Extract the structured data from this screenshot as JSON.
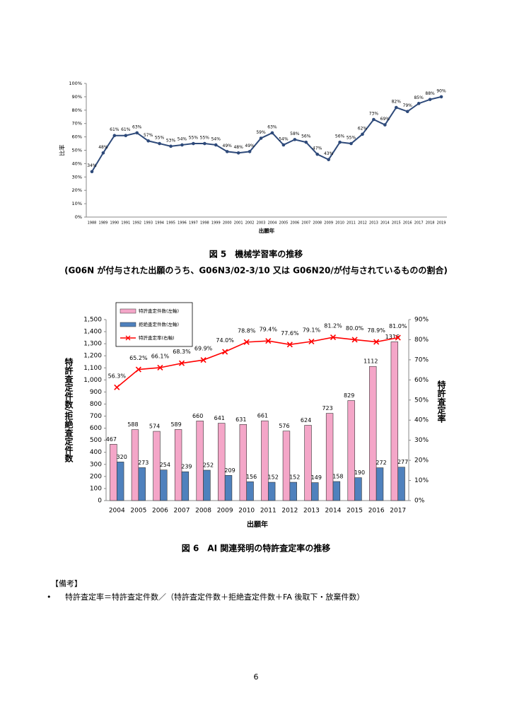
{
  "chart_data": [
    {
      "type": "line",
      "x_label": "出願年",
      "y_label": "比率",
      "categories": [
        "1988",
        "1989",
        "1990",
        "1991",
        "1992",
        "1993",
        "1994",
        "1995",
        "1996",
        "1997",
        "1998",
        "1999",
        "2000",
        "2001",
        "2002",
        "2003",
        "2004",
        "2005",
        "2006",
        "2007",
        "2008",
        "2009",
        "2010",
        "2011",
        "2012",
        "2013",
        "2014",
        "2015",
        "2016",
        "2017",
        "2018",
        "2019"
      ],
      "series": [
        {
          "color": "#2e4a7a",
          "marker": "circle",
          "values": [
            34,
            48,
            61,
            61,
            63,
            57,
            55,
            53,
            54,
            55,
            55,
            54,
            49,
            48,
            49,
            59,
            63,
            54,
            58,
            56,
            47,
            43,
            56,
            55,
            62,
            73,
            69,
            82,
            79,
            85,
            88,
            90
          ],
          "value_labels": [
            "34%",
            "48%",
            "61%",
            "61%",
            "63%",
            "57%",
            "55%",
            "53%",
            "54%",
            "55%",
            "55%",
            "54%",
            "49%",
            "48%",
            "49%",
            "59%",
            "63%",
            "54%",
            "58%",
            "56%",
            "47%",
            "43%",
            "56%",
            "55%",
            "62%",
            "73%",
            "69%",
            "82%",
            "79%",
            "85%",
            "88%",
            "90%"
          ]
        }
      ],
      "ylim": [
        0,
        100
      ],
      "yticks": [
        {
          "value": 0,
          "label": "0%"
        },
        {
          "value": 10,
          "label": "10%"
        },
        {
          "value": 20,
          "label": "20%"
        },
        {
          "value": 30,
          "label": "30%"
        },
        {
          "value": 40,
          "label": "40%"
        },
        {
          "value": 50,
          "label": "50%"
        },
        {
          "value": 60,
          "label": "60%"
        },
        {
          "value": 70,
          "label": "70%"
        },
        {
          "value": 80,
          "label": "80%"
        },
        {
          "value": 90,
          "label": "90%"
        },
        {
          "value": 100,
          "label": "100%"
        }
      ],
      "grid": false
    },
    {
      "type": "combo",
      "x_label": "出願年",
      "y_label": "特許査定件数/拒絶査定件数",
      "y2_label": "特許査定率",
      "categories": [
        "2004",
        "2005",
        "2006",
        "2007",
        "2008",
        "2009",
        "2010",
        "2011",
        "2012",
        "2013",
        "2014",
        "2015",
        "2016",
        "2017"
      ],
      "series": [
        {
          "name": "特許査定件数(左軸)",
          "type": "bar",
          "color": "#f4a6c8",
          "values": [
            467,
            588,
            574,
            589,
            660,
            641,
            631,
            661,
            576,
            624,
            723,
            829,
            1112,
            1316
          ]
        },
        {
          "name": "拒絶査定件数(左軸)",
          "type": "bar",
          "color": "#4f81bd",
          "values": [
            320,
            273,
            254,
            239,
            252,
            209,
            156,
            152,
            152,
            149,
            158,
            190,
            272,
            277
          ]
        },
        {
          "name": "特許査定率(右軸)",
          "type": "line",
          "axis": "y2",
          "color": "#ff0000",
          "marker": "x",
          "values": [
            56.3,
            65.2,
            66.1,
            68.3,
            69.9,
            74.0,
            78.8,
            79.4,
            77.6,
            79.1,
            81.2,
            80.0,
            78.9,
            81.0
          ],
          "value_labels": [
            "56.3%",
            "65.2%",
            "66.1%",
            "68.3%",
            "69.9%",
            "74.0%",
            "78.8%",
            "79.4%",
            "77.6%",
            "79.1%",
            "81.2%",
            "80.0%",
            "78.9%",
            "81.0%"
          ]
        }
      ],
      "ylim": [
        0,
        1500
      ],
      "yticks": [
        0,
        100,
        200,
        300,
        400,
        500,
        600,
        700,
        800,
        900,
        {
          "value": 1000,
          "label": "1,000"
        },
        {
          "value": 1100,
          "label": "1,100"
        },
        {
          "value": 1200,
          "label": "1,200"
        },
        {
          "value": 1300,
          "label": "1,300"
        },
        {
          "value": 1400,
          "label": "1,400"
        },
        {
          "value": 1500,
          "label": "1,500"
        }
      ],
      "y2lim": [
        0,
        90
      ],
      "y2ticks": [
        {
          "value": 0,
          "label": "0%"
        },
        {
          "value": 10,
          "label": "10%"
        },
        {
          "value": 20,
          "label": "20%"
        },
        {
          "value": 30,
          "label": "30%"
        },
        {
          "value": 40,
          "label": "40%"
        },
        {
          "value": 50,
          "label": "50%"
        },
        {
          "value": 60,
          "label": "60%"
        },
        {
          "value": 70,
          "label": "70%"
        },
        {
          "value": 80,
          "label": "80%"
        },
        {
          "value": 90,
          "label": "90%"
        }
      ],
      "legend": "upper left",
      "grid": false
    }
  ],
  "captions": [
    "図 5　機械学習率の推移",
    "(G06N が付与された出願のうち、G06N3/02-3/10 又は G06N20/が付与されているものの割合)",
    "図 6　AI 関連発明の特許査定率の推移"
  ],
  "notes": {
    "heading": "【備考】",
    "bullet": "•",
    "text": "特許査定率＝特許査定件数／（特許査定件数＋拒絶査定件数＋FA 後取下・放棄件数）"
  },
  "page_number": "6"
}
